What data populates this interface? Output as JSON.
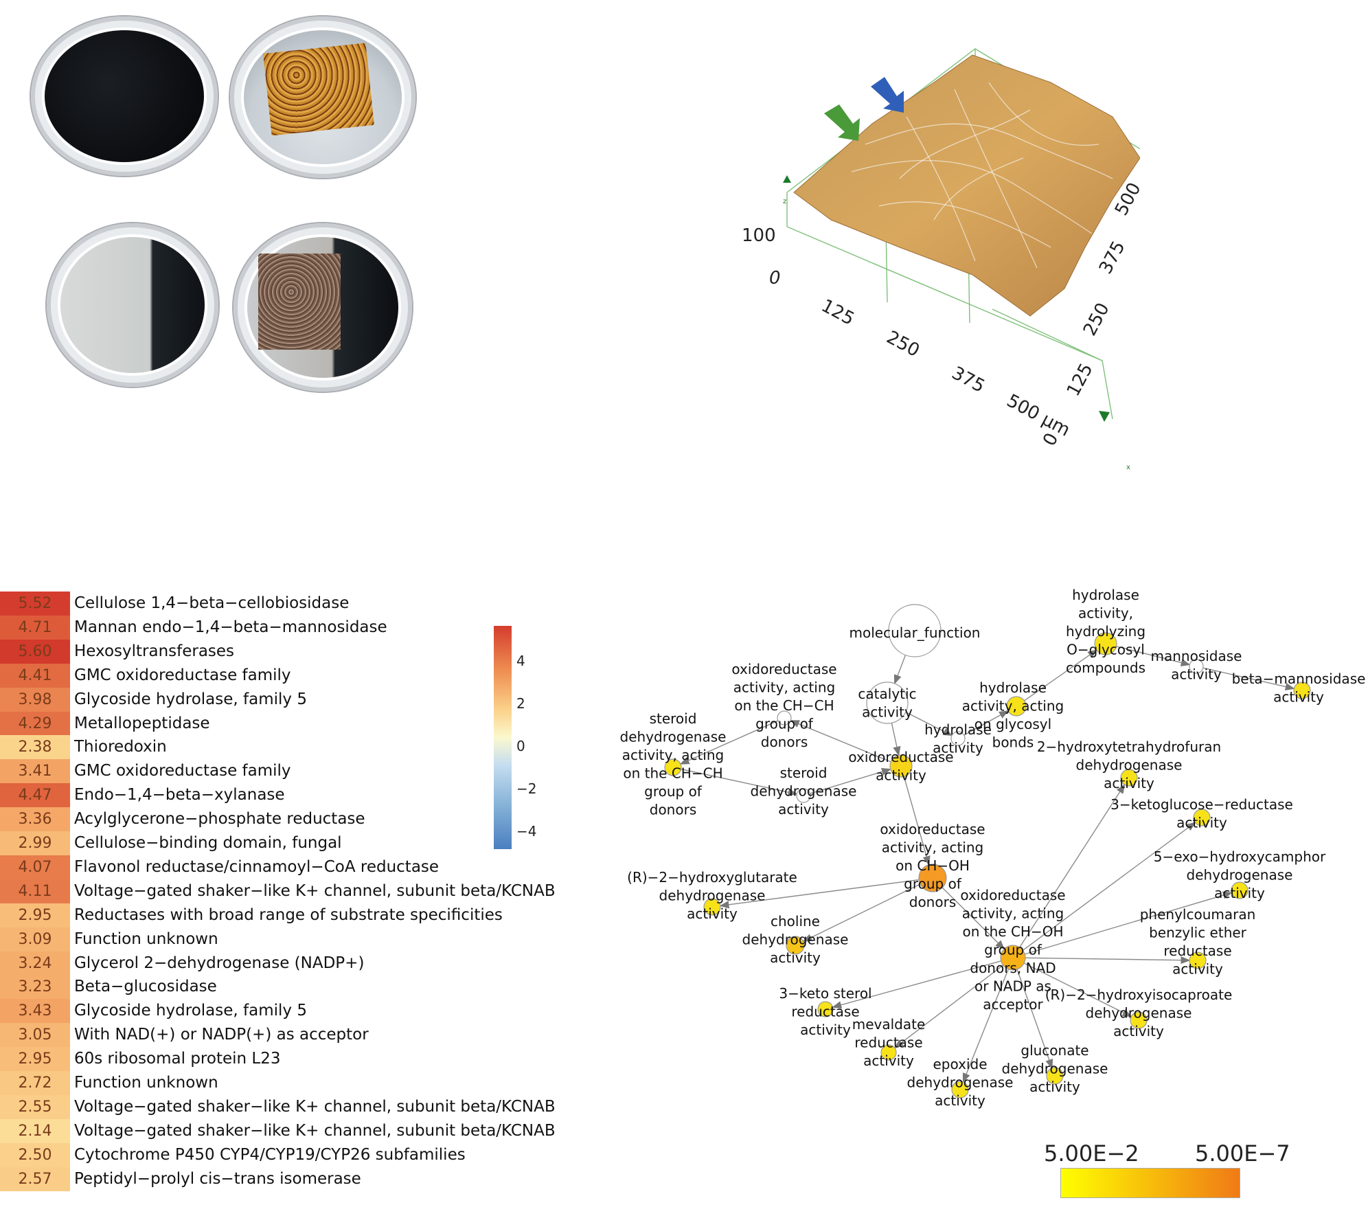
{
  "surface": {
    "z_tick": "100",
    "z_zero": "0",
    "x_ticks": [
      "125",
      "250",
      "375"
    ],
    "x_end": "500 µm",
    "y_ticks": [
      "0",
      "125",
      "250",
      "375",
      "500"
    ],
    "z_axis_letter": "z",
    "x_axis_letter": "x",
    "arrow_colors": {
      "green": "#4a9a3a",
      "blue": "#2f5fb8"
    }
  },
  "heatmap": {
    "rows": [
      {
        "value": "5.52",
        "label": "Cellulose 1,4−beta−cellobiosidase",
        "color": "#d43d2e"
      },
      {
        "value": "4.71",
        "label": "Mannan endo−1,4−beta−mannosidase",
        "color": "#de5b3a"
      },
      {
        "value": "5.60",
        "label": "Hexosyltransferases",
        "color": "#d23a2c"
      },
      {
        "value": "4.41",
        "label": "GMC oxidoreductase family",
        "color": "#e26b41"
      },
      {
        "value": "3.98",
        "label": "Glycoside hydrolase, family 5",
        "color": "#ea8450"
      },
      {
        "value": "4.29",
        "label": "Metallopeptidase",
        "color": "#e47145"
      },
      {
        "value": "2.38",
        "label": "Thioredoxin",
        "color": "#fbd48c"
      },
      {
        "value": "3.41",
        "label": "GMC oxidoreductase family",
        "color": "#f3a465"
      },
      {
        "value": "4.47",
        "label": "Endo−1,4−beta−xylanase",
        "color": "#e0643e"
      },
      {
        "value": "3.36",
        "label": "Acylglycerone−phosphate reductase",
        "color": "#f4a767"
      },
      {
        "value": "2.99",
        "label": "Cellulose−binding domain, fungal",
        "color": "#f7bb77"
      },
      {
        "value": "4.07",
        "label": "Flavonol reductase/cinnamoyl−CoA reductase",
        "color": "#e87c4b"
      },
      {
        "value": "4.11",
        "label": "Voltage−gated shaker−like K+ channel, subunit beta/KCNAB",
        "color": "#e77a4a"
      },
      {
        "value": "2.95",
        "label": "Reductases with broad range of substrate specificities",
        "color": "#f8bd79"
      },
      {
        "value": "3.09",
        "label": "Function unknown",
        "color": "#f6b572"
      },
      {
        "value": "3.24",
        "label": "Glycerol 2−dehydrogenase (NADP+)",
        "color": "#f5ad6b"
      },
      {
        "value": "3.23",
        "label": "Beta−glucosidase",
        "color": "#f5ad6b"
      },
      {
        "value": "3.43",
        "label": "Glycoside hydrolase, family 5",
        "color": "#f3a364"
      },
      {
        "value": "3.05",
        "label": "With NAD(+) or NADP(+) as acceptor",
        "color": "#f6b774"
      },
      {
        "value": "2.95",
        "label": "60s ribosomal protein L23",
        "color": "#f8bd79"
      },
      {
        "value": "2.72",
        "label": "Function unknown",
        "color": "#f9c882"
      },
      {
        "value": "2.55",
        "label": "Voltage−gated shaker−like K+ channel, subunit beta/KCNAB",
        "color": "#face88"
      },
      {
        "value": "2.14",
        "label": "Voltage−gated shaker−like K+ channel, subunit beta/KCNAB",
        "color": "#fcdd98"
      },
      {
        "value": "2.50",
        "label": "Cytochrome P450 CYP4/CYP19/CYP26 subfamilies",
        "color": "#fad08a"
      },
      {
        "value": "2.57",
        "label": "Peptidyl−prolyl cis−trans isomerase",
        "color": "#f9cd87"
      }
    ],
    "colorbar_ticks": [
      "4",
      "2",
      "0",
      "−2",
      "−4"
    ]
  },
  "network": {
    "nodes": [
      {
        "id": "mf",
        "lines": [
          "molecular_function"
        ],
        "fill": "#ffffff"
      },
      {
        "id": "cat",
        "lines": [
          "catalytic",
          "activity"
        ],
        "fill": "#ffffff"
      },
      {
        "id": "hydlz",
        "lines": [
          "hydrolase",
          "activity,",
          "hydrolyzing",
          "O−glycosyl",
          "compounds"
        ],
        "fill": "#f7e21a"
      },
      {
        "id": "mann",
        "lines": [
          "mannosidase",
          "activity"
        ],
        "fill": "#ffffff"
      },
      {
        "id": "bman",
        "lines": [
          "beta−mannosidase",
          "activity"
        ],
        "fill": "#f7e21a"
      },
      {
        "id": "hydgly",
        "lines": [
          "hydrolase",
          "activity, acting",
          "on glycosyl",
          "bonds"
        ],
        "fill": "#f7e21a"
      },
      {
        "id": "hyd",
        "lines": [
          "hydrolase",
          "activity"
        ],
        "fill": "#ffffff"
      },
      {
        "id": "oxchch",
        "lines": [
          "oxidoreductase",
          "activity, acting",
          "on the CH−CH",
          "group of",
          "donors"
        ],
        "fill": "#ffffff"
      },
      {
        "id": "oxido",
        "lines": [
          "oxidoreductase",
          "activity"
        ],
        "fill": "#f7d41a"
      },
      {
        "id": "sterchch",
        "lines": [
          "steroid",
          "dehydrogenase",
          "activity, acting",
          "on the CH−CH",
          "group of",
          "donors"
        ],
        "fill": "#f7e21a"
      },
      {
        "id": "ster",
        "lines": [
          "steroid",
          "dehydrogenase",
          "activity"
        ],
        "fill": "#ffffff"
      },
      {
        "id": "hthf",
        "lines": [
          "2−hydroxytetrahydrofuran",
          "dehydrogenase",
          "activity"
        ],
        "fill": "#f7e21a"
      },
      {
        "id": "ketog",
        "lines": [
          "3−ketoglucose−reductase",
          "activity"
        ],
        "fill": "#f7e21a"
      },
      {
        "id": "oxchoh",
        "lines": [
          "oxidoreductase",
          "activity, acting",
          "on CH−OH",
          "group of",
          "donors"
        ],
        "fill": "#f59a24"
      },
      {
        "id": "r2hg",
        "lines": [
          "(R)−2−hydroxyglutarate",
          "dehydrogenase",
          "activity"
        ],
        "fill": "#f7e21a"
      },
      {
        "id": "exo",
        "lines": [
          "5−exo−hydroxycamphor",
          "dehydrogenase",
          "activity"
        ],
        "fill": "#f7e21a"
      },
      {
        "id": "chol",
        "lines": [
          "choline",
          "dehydrogenase",
          "activity"
        ],
        "fill": "#f7c41a"
      },
      {
        "id": "nad",
        "lines": [
          "oxidoreductase",
          "activity, acting",
          "on the CH−OH",
          "group of",
          "donors, NAD",
          "or NADP as",
          "acceptor"
        ],
        "fill": "#f7b21a"
      },
      {
        "id": "phen",
        "lines": [
          "phenylcoumaran",
          "benzylic ether",
          "reductase",
          "activity"
        ],
        "fill": "#f7e21a"
      },
      {
        "id": "keto3",
        "lines": [
          "3−keto sterol",
          "reductase",
          "activity"
        ],
        "fill": "#f7e21a"
      },
      {
        "id": "meva",
        "lines": [
          "mevaldate",
          "reductase",
          "activity"
        ],
        "fill": "#f7e21a"
      },
      {
        "id": "r2hic",
        "lines": [
          "(R)−2−hydroxyisocaproate",
          "dehydrogenase",
          "activity"
        ],
        "fill": "#f7e21a"
      },
      {
        "id": "glu",
        "lines": [
          "gluconate",
          "dehydrogenase",
          "activity"
        ],
        "fill": "#f7e21a"
      },
      {
        "id": "epo",
        "lines": [
          "epoxide",
          "dehydrogenase",
          "activity"
        ],
        "fill": "#f7e21a"
      }
    ],
    "legend": {
      "left": "5.00E−2",
      "right": "5.00E−7",
      "gradient_start": "#ffff00",
      "gradient_end": "#f07a16"
    }
  }
}
